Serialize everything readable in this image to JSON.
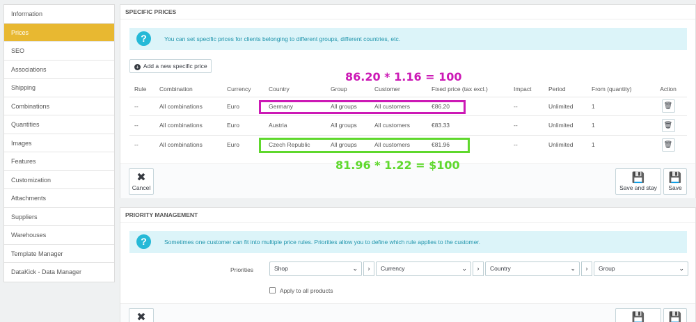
{
  "sidebar": {
    "items": [
      {
        "label": "Information"
      },
      {
        "label": "Prices",
        "active": true
      },
      {
        "label": "SEO"
      },
      {
        "label": "Associations"
      },
      {
        "label": "Shipping"
      },
      {
        "label": "Combinations"
      },
      {
        "label": "Quantities"
      },
      {
        "label": "Images"
      },
      {
        "label": "Features"
      },
      {
        "label": "Customization"
      },
      {
        "label": "Attachments"
      },
      {
        "label": "Suppliers"
      },
      {
        "label": "Warehouses"
      },
      {
        "label": "Template Manager"
      },
      {
        "label": "DataKick - Data Manager"
      }
    ]
  },
  "specific_prices": {
    "heading": "SPECIFIC PRICES",
    "info_text": "You can set specific prices for clients belonging to different groups, different countries, etc.",
    "add_button_label": "Add a new specific price",
    "columns": [
      "Rule",
      "Combination",
      "Currency",
      "Country",
      "Group",
      "Customer",
      "Fixed price (tax excl.)",
      "Impact",
      "Period",
      "From (quantity)",
      "Action"
    ],
    "rows": [
      {
        "rule": "--",
        "combination": "All combinations",
        "currency": "Euro",
        "country": "Germany",
        "group": "All groups",
        "customer": "All customers",
        "fixed_price": "€86.20",
        "impact": "--",
        "period": "Unlimited",
        "from_quantity": "1"
      },
      {
        "rule": "--",
        "combination": "All combinations",
        "currency": "Euro",
        "country": "Austria",
        "group": "All groups",
        "customer": "All customers",
        "fixed_price": "€83.33",
        "impact": "--",
        "period": "Unlimited",
        "from_quantity": "1"
      },
      {
        "rule": "--",
        "combination": "All combinations",
        "currency": "Euro",
        "country": "Czech Republic",
        "group": "All groups",
        "customer": "All customers",
        "fixed_price": "€81.96",
        "impact": "--",
        "period": "Unlimited",
        "from_quantity": "1"
      }
    ],
    "footer": {
      "cancel_label": "Cancel",
      "save_and_stay_label": "Save and stay",
      "save_label": "Save"
    }
  },
  "annotations": {
    "magenta_text": "86.20 * 1.16 = 100",
    "green_text": "81.96 * 1.22 = $100",
    "magenta_color": "#cc19b5",
    "green_color": "#5fd82d"
  },
  "priority": {
    "heading": "PRIORITY MANAGEMENT",
    "info_text": "Sometimes one customer can fit into multiple price rules. Priorities allow you to define which rule applies to the customer.",
    "label": "Priorities",
    "selects": [
      "Shop",
      "Currency",
      "Country",
      "Group"
    ],
    "apply_all_label": "Apply to all products"
  },
  "colors": {
    "accent": "#e8b831",
    "info_icon": "#25b9d7",
    "info_bg": "#dcf4f9"
  }
}
